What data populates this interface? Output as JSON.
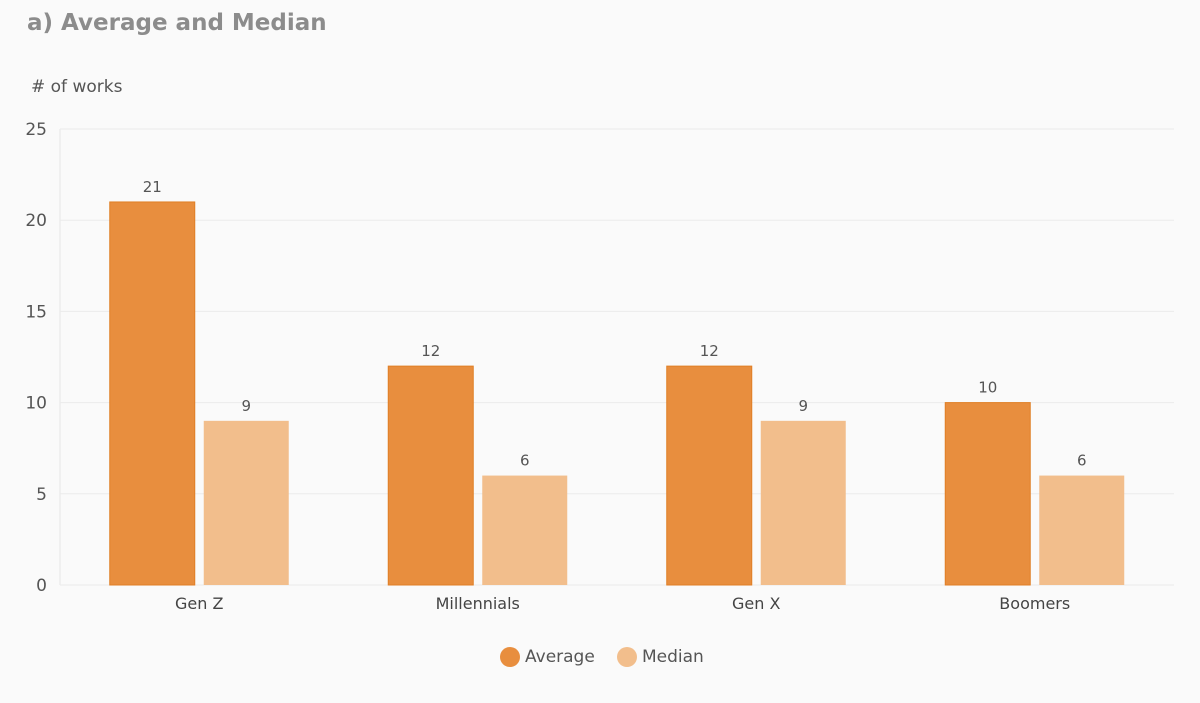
{
  "chart_data": {
    "type": "bar",
    "title": "a) Average and Median",
    "xlabel": "",
    "ylabel": "# of works",
    "ylim": [
      0,
      25
    ],
    "yticks": [
      0,
      5,
      10,
      15,
      20,
      25
    ],
    "grid": true,
    "legend_position": "bottom-center",
    "categories": [
      "Gen Z",
      "Millennials",
      "Gen X",
      "Boomers"
    ],
    "series": [
      {
        "name": "Average",
        "color": "#e88e3e",
        "values": [
          21,
          12,
          12,
          10
        ]
      },
      {
        "name": "Median",
        "color": "#f2be8c",
        "values": [
          9,
          6,
          9,
          6
        ]
      }
    ]
  }
}
